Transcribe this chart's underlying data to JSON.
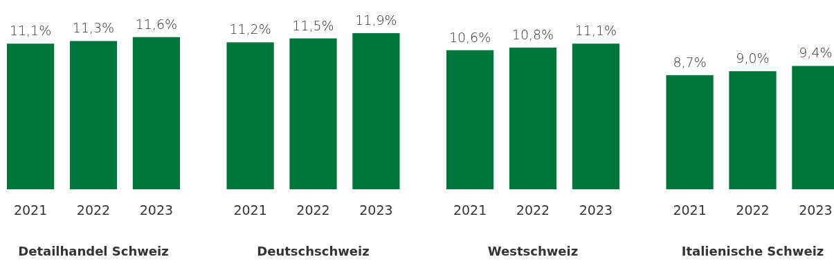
{
  "chart_data": [
    {
      "type": "bar",
      "xlabel": "Detailhandel Schweiz",
      "categories": [
        "2021",
        "2022",
        "2023"
      ],
      "values": [
        11.1,
        11.3,
        11.6
      ],
      "value_labels": [
        "11,1%",
        "11,3%",
        "11,6%"
      ],
      "color": "#00753a",
      "tick_labels": "x"
    },
    {
      "type": "bar",
      "xlabel": "Deutschschweiz",
      "categories": [
        "2021",
        "2022",
        "2023"
      ],
      "values": [
        11.2,
        11.5,
        11.9
      ],
      "value_labels": [
        "11,2%",
        "11,5%",
        "11,9%"
      ],
      "color": "#00753a",
      "tick_labels": "x"
    },
    {
      "type": "bar",
      "xlabel": "Westschweiz",
      "categories": [
        "2021",
        "2022",
        "2023"
      ],
      "values": [
        10.6,
        10.8,
        11.1
      ],
      "value_labels": [
        "10,6%",
        "10,8%",
        "11,1%"
      ],
      "color": "#00753a",
      "tick_labels": "x"
    },
    {
      "type": "bar",
      "xlabel": "Italienische Schweiz",
      "categories": [
        "2021",
        "2022",
        "2023"
      ],
      "values": [
        8.7,
        9.0,
        9.4
      ],
      "value_labels": [
        "8,7%",
        "9,0%",
        "9,4%"
      ],
      "color": "#00753a",
      "tick_labels": "x"
    }
  ]
}
